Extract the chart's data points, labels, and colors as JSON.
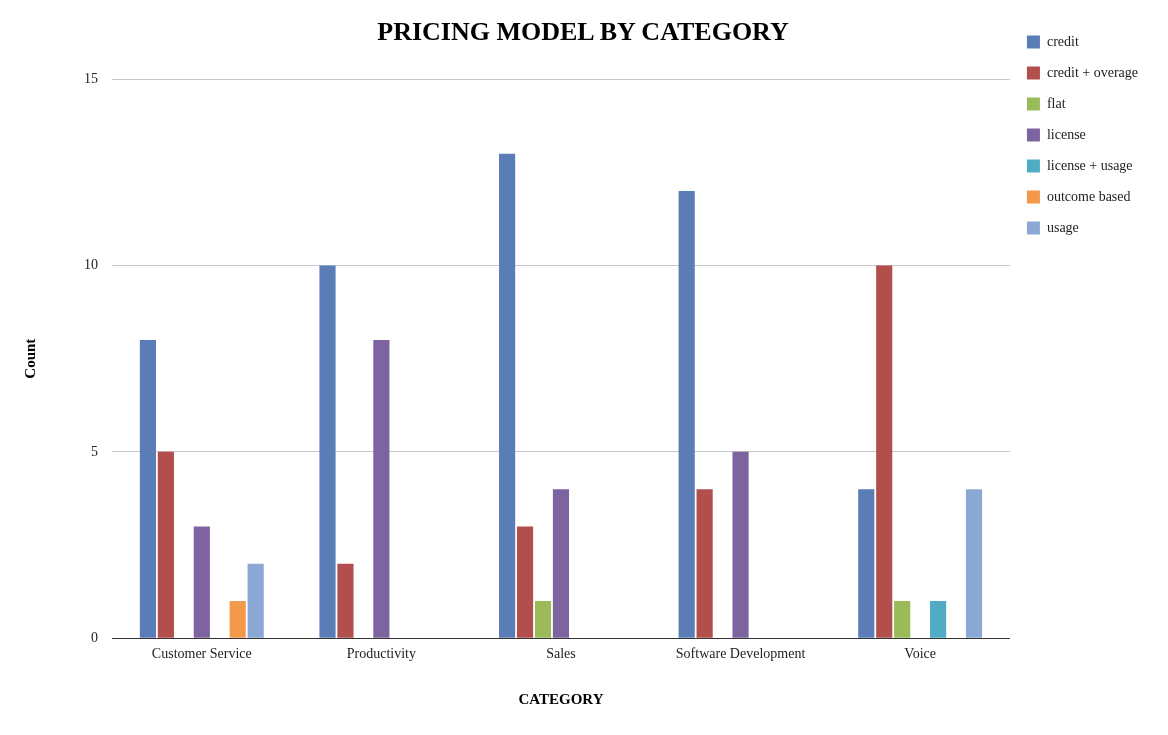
{
  "chart_data": {
    "type": "bar",
    "title": "PRICING MODEL BY CATEGORY",
    "xlabel": "CATEGORY",
    "ylabel": "Count",
    "categories": [
      "Customer Service",
      "Productivity",
      "Sales",
      "Software Development",
      "Voice"
    ],
    "series": [
      {
        "name": "credit",
        "color": "#5a7db8",
        "values": [
          8,
          10,
          13,
          12,
          4
        ]
      },
      {
        "name": "credit + overage",
        "color": "#b24f4c",
        "values": [
          5,
          2,
          3,
          4,
          10
        ]
      },
      {
        "name": "flat",
        "color": "#9bbb59",
        "values": [
          0,
          0,
          1,
          0,
          1
        ]
      },
      {
        "name": "license",
        "color": "#7e63a1",
        "values": [
          3,
          8,
          4,
          5,
          0
        ]
      },
      {
        "name": "license + usage",
        "color": "#4facc4",
        "values": [
          0,
          0,
          0,
          0,
          1
        ]
      },
      {
        "name": "outcome based",
        "color": "#f3994c",
        "values": [
          1,
          0,
          0,
          0,
          0
        ]
      },
      {
        "name": "usage",
        "color": "#8ba8d4",
        "values": [
          2,
          0,
          0,
          0,
          4
        ]
      }
    ],
    "ylim": [
      0,
      15
    ],
    "yticks": [
      0,
      5,
      10,
      15
    ],
    "grid": "y",
    "legend": "top right"
  }
}
